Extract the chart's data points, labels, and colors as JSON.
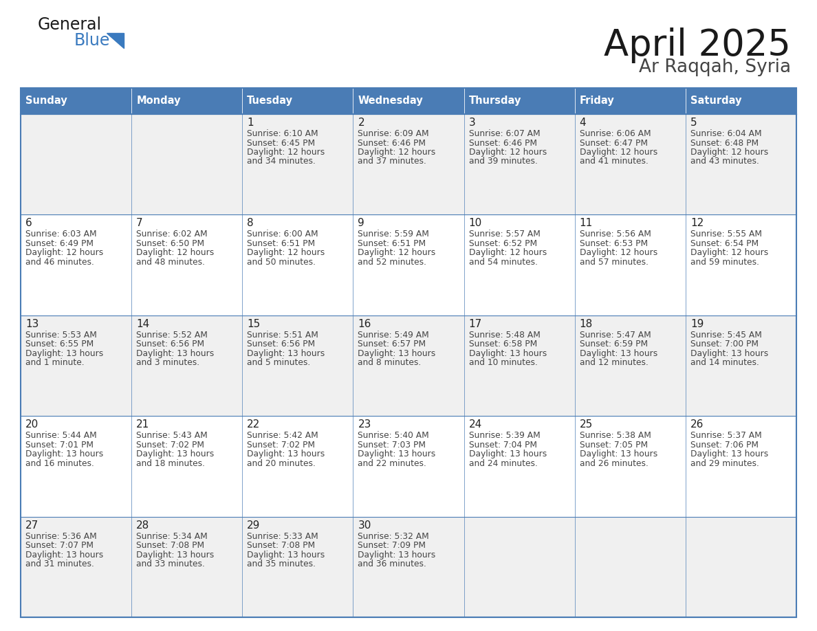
{
  "title": "April 2025",
  "subtitle": "Ar Raqqah, Syria",
  "header_bg": "#4a7cb5",
  "header_text": "#ffffff",
  "row_bg_odd": "#f0f0f0",
  "row_bg_even": "#ffffff",
  "border_color": "#4a7cb5",
  "days_of_week": [
    "Sunday",
    "Monday",
    "Tuesday",
    "Wednesday",
    "Thursday",
    "Friday",
    "Saturday"
  ],
  "title_color": "#1a1a1a",
  "subtitle_color": "#444444",
  "cell_text_color": "#444444",
  "day_number_color": "#222222",
  "logo_blue_color": "#3a7abf",
  "logo_black_color": "#1a1a1a",
  "calendar": [
    [
      {
        "day": "",
        "sunrise": "",
        "sunset": "",
        "daylight_h": "",
        "daylight_m": ""
      },
      {
        "day": "",
        "sunrise": "",
        "sunset": "",
        "daylight_h": "",
        "daylight_m": ""
      },
      {
        "day": "1",
        "sunrise": "6:10 AM",
        "sunset": "6:45 PM",
        "daylight_h": "12 hours",
        "daylight_m": "34 minutes"
      },
      {
        "day": "2",
        "sunrise": "6:09 AM",
        "sunset": "6:46 PM",
        "daylight_h": "12 hours",
        "daylight_m": "37 minutes"
      },
      {
        "day": "3",
        "sunrise": "6:07 AM",
        "sunset": "6:46 PM",
        "daylight_h": "12 hours",
        "daylight_m": "39 minutes"
      },
      {
        "day": "4",
        "sunrise": "6:06 AM",
        "sunset": "6:47 PM",
        "daylight_h": "12 hours",
        "daylight_m": "41 minutes"
      },
      {
        "day": "5",
        "sunrise": "6:04 AM",
        "sunset": "6:48 PM",
        "daylight_h": "12 hours",
        "daylight_m": "43 minutes"
      }
    ],
    [
      {
        "day": "6",
        "sunrise": "6:03 AM",
        "sunset": "6:49 PM",
        "daylight_h": "12 hours",
        "daylight_m": "46 minutes"
      },
      {
        "day": "7",
        "sunrise": "6:02 AM",
        "sunset": "6:50 PM",
        "daylight_h": "12 hours",
        "daylight_m": "48 minutes"
      },
      {
        "day": "8",
        "sunrise": "6:00 AM",
        "sunset": "6:51 PM",
        "daylight_h": "12 hours",
        "daylight_m": "50 minutes"
      },
      {
        "day": "9",
        "sunrise": "5:59 AM",
        "sunset": "6:51 PM",
        "daylight_h": "12 hours",
        "daylight_m": "52 minutes"
      },
      {
        "day": "10",
        "sunrise": "5:57 AM",
        "sunset": "6:52 PM",
        "daylight_h": "12 hours",
        "daylight_m": "54 minutes"
      },
      {
        "day": "11",
        "sunrise": "5:56 AM",
        "sunset": "6:53 PM",
        "daylight_h": "12 hours",
        "daylight_m": "57 minutes"
      },
      {
        "day": "12",
        "sunrise": "5:55 AM",
        "sunset": "6:54 PM",
        "daylight_h": "12 hours",
        "daylight_m": "59 minutes"
      }
    ],
    [
      {
        "day": "13",
        "sunrise": "5:53 AM",
        "sunset": "6:55 PM",
        "daylight_h": "13 hours",
        "daylight_m": "1 minute"
      },
      {
        "day": "14",
        "sunrise": "5:52 AM",
        "sunset": "6:56 PM",
        "daylight_h": "13 hours",
        "daylight_m": "3 minutes"
      },
      {
        "day": "15",
        "sunrise": "5:51 AM",
        "sunset": "6:56 PM",
        "daylight_h": "13 hours",
        "daylight_m": "5 minutes"
      },
      {
        "day": "16",
        "sunrise": "5:49 AM",
        "sunset": "6:57 PM",
        "daylight_h": "13 hours",
        "daylight_m": "8 minutes"
      },
      {
        "day": "17",
        "sunrise": "5:48 AM",
        "sunset": "6:58 PM",
        "daylight_h": "13 hours",
        "daylight_m": "10 minutes"
      },
      {
        "day": "18",
        "sunrise": "5:47 AM",
        "sunset": "6:59 PM",
        "daylight_h": "13 hours",
        "daylight_m": "12 minutes"
      },
      {
        "day": "19",
        "sunrise": "5:45 AM",
        "sunset": "7:00 PM",
        "daylight_h": "13 hours",
        "daylight_m": "14 minutes"
      }
    ],
    [
      {
        "day": "20",
        "sunrise": "5:44 AM",
        "sunset": "7:01 PM",
        "daylight_h": "13 hours",
        "daylight_m": "16 minutes"
      },
      {
        "day": "21",
        "sunrise": "5:43 AM",
        "sunset": "7:02 PM",
        "daylight_h": "13 hours",
        "daylight_m": "18 minutes"
      },
      {
        "day": "22",
        "sunrise": "5:42 AM",
        "sunset": "7:02 PM",
        "daylight_h": "13 hours",
        "daylight_m": "20 minutes"
      },
      {
        "day": "23",
        "sunrise": "5:40 AM",
        "sunset": "7:03 PM",
        "daylight_h": "13 hours",
        "daylight_m": "22 minutes"
      },
      {
        "day": "24",
        "sunrise": "5:39 AM",
        "sunset": "7:04 PM",
        "daylight_h": "13 hours",
        "daylight_m": "24 minutes"
      },
      {
        "day": "25",
        "sunrise": "5:38 AM",
        "sunset": "7:05 PM",
        "daylight_h": "13 hours",
        "daylight_m": "26 minutes"
      },
      {
        "day": "26",
        "sunrise": "5:37 AM",
        "sunset": "7:06 PM",
        "daylight_h": "13 hours",
        "daylight_m": "29 minutes"
      }
    ],
    [
      {
        "day": "27",
        "sunrise": "5:36 AM",
        "sunset": "7:07 PM",
        "daylight_h": "13 hours",
        "daylight_m": "31 minutes"
      },
      {
        "day": "28",
        "sunrise": "5:34 AM",
        "sunset": "7:08 PM",
        "daylight_h": "13 hours",
        "daylight_m": "33 minutes"
      },
      {
        "day": "29",
        "sunrise": "5:33 AM",
        "sunset": "7:08 PM",
        "daylight_h": "13 hours",
        "daylight_m": "35 minutes"
      },
      {
        "day": "30",
        "sunrise": "5:32 AM",
        "sunset": "7:09 PM",
        "daylight_h": "13 hours",
        "daylight_m": "36 minutes"
      },
      {
        "day": "",
        "sunrise": "",
        "sunset": "",
        "daylight_h": "",
        "daylight_m": ""
      },
      {
        "day": "",
        "sunrise": "",
        "sunset": "",
        "daylight_h": "",
        "daylight_m": ""
      },
      {
        "day": "",
        "sunrise": "",
        "sunset": "",
        "daylight_h": "",
        "daylight_m": ""
      }
    ]
  ]
}
